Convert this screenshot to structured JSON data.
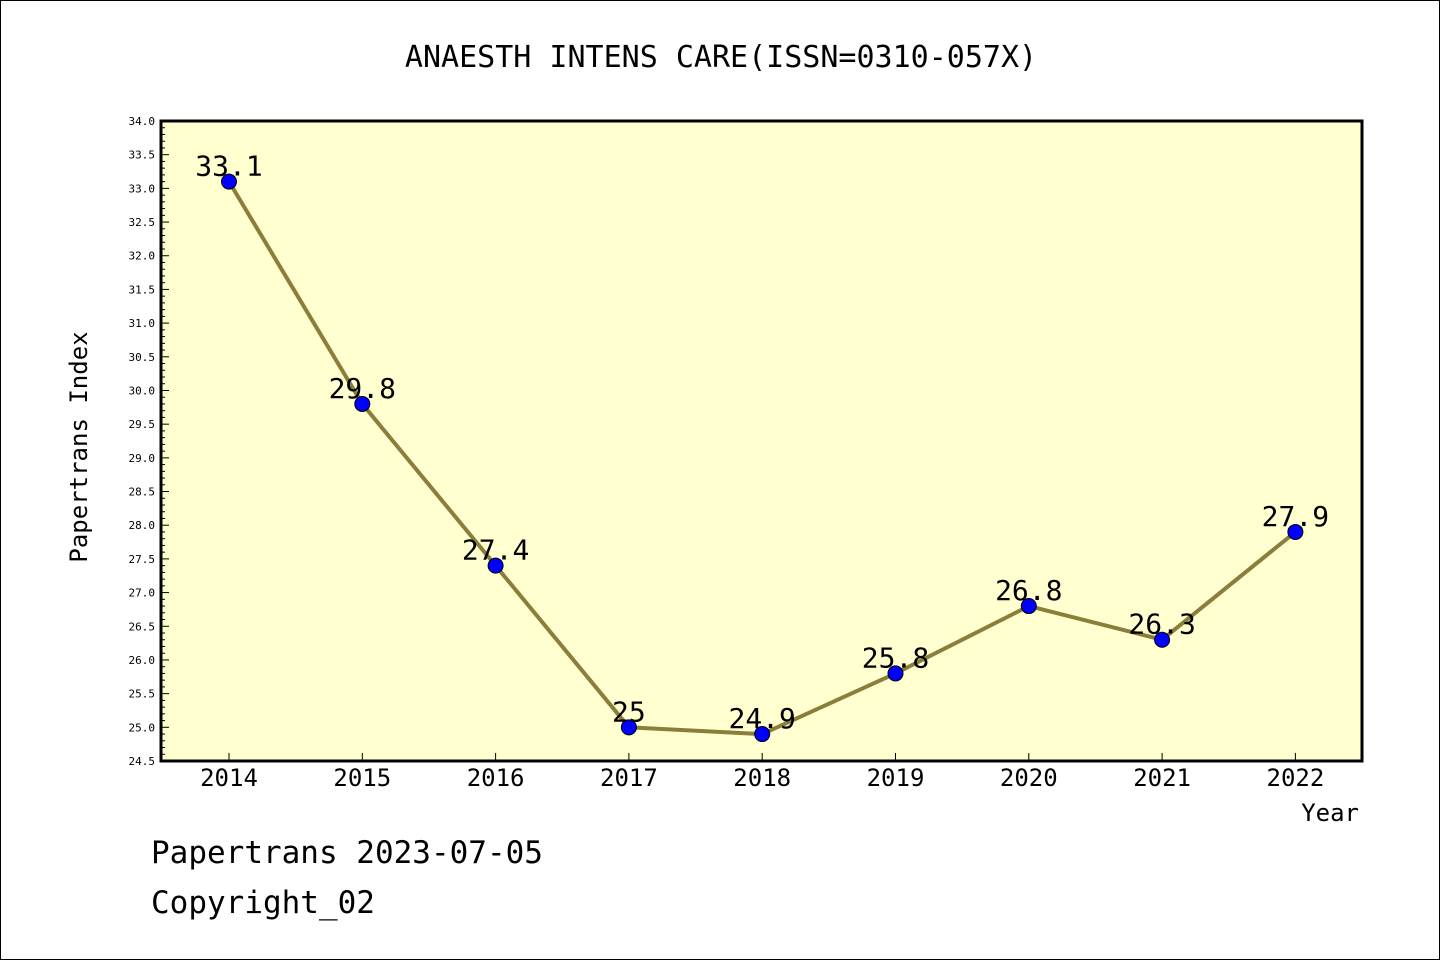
{
  "chart_data": {
    "type": "line",
    "title": "ANAESTH INTENS CARE(ISSN=0310-057X)",
    "xlabel": "Year",
    "ylabel": "Papertrans Index",
    "categories": [
      "2014",
      "2015",
      "2016",
      "2017",
      "2018",
      "2019",
      "2020",
      "2021",
      "2022"
    ],
    "series": [
      {
        "values": [
          33.1,
          29.8,
          27.4,
          25.0,
          24.9,
          25.8,
          26.8,
          26.3,
          27.9
        ]
      }
    ],
    "data_labels": [
      "33.1",
      "29.8",
      "27.4",
      "25",
      "24.9",
      "25.8",
      "26.8",
      "26.3",
      "27.9"
    ],
    "ylim": [
      24.5,
      34.0
    ],
    "yticks": [
      "24.5",
      "25.0",
      "25.5",
      "26.0",
      "26.5",
      "27.0",
      "27.5",
      "28.0",
      "28.5",
      "29.0",
      "29.5",
      "30.0",
      "30.5",
      "31.0",
      "31.5",
      "32.0",
      "32.5",
      "33.0",
      "33.5",
      "34.0"
    ],
    "grid": false,
    "colors": {
      "plot_bg": "#ffffd0",
      "line": "#8b7d3a",
      "marker": "#0000ff"
    }
  },
  "footer": {
    "line1": "Papertrans 2023-07-05",
    "line2": "Copyright_02"
  }
}
